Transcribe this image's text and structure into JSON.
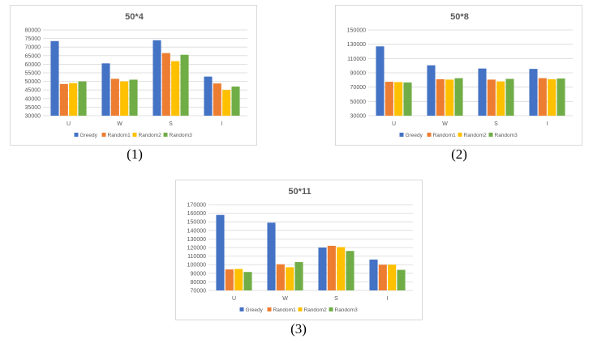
{
  "colors": {
    "Greedy": "#4472c4",
    "Random1": "#ed7d31",
    "Random2": "#ffc000",
    "Random3": "#70ad47",
    "grid": "#d9d9d9",
    "text": "#595959"
  },
  "captions": [
    "(1)",
    "(2)",
    "(3)"
  ],
  "chart_data": [
    {
      "type": "bar",
      "title": "50*4",
      "categories": [
        "U",
        "W",
        "S",
        "I"
      ],
      "series": [
        {
          "name": "Greedy",
          "values": [
            73500,
            60500,
            74000,
            52800
          ]
        },
        {
          "name": "Random1",
          "values": [
            48500,
            51500,
            66500,
            48800
          ]
        },
        {
          "name": "Random2",
          "values": [
            49000,
            50000,
            61800,
            45000
          ]
        },
        {
          "name": "Random3",
          "values": [
            50000,
            51000,
            65500,
            47000
          ]
        }
      ],
      "ylim": [
        30000,
        80000
      ],
      "yticks": [
        "80000",
        "75000",
        "70000",
        "65000",
        "60000",
        "55000",
        "50000",
        "45000",
        "40000",
        "35000",
        "30000"
      ],
      "grid": true,
      "legend": "bottom"
    },
    {
      "type": "bar",
      "title": "50*8",
      "categories": [
        "U",
        "W",
        "S",
        "I"
      ],
      "series": [
        {
          "name": "Greedy",
          "values": [
            127000,
            100500,
            96000,
            95500
          ]
        },
        {
          "name": "Random1",
          "values": [
            77500,
            81000,
            80500,
            82500
          ]
        },
        {
          "name": "Random2",
          "values": [
            77000,
            80500,
            78000,
            81000
          ]
        },
        {
          "name": "Random3",
          "values": [
            76500,
            82500,
            81500,
            82000
          ]
        }
      ],
      "ylim": [
        30000,
        150000
      ],
      "yticks": [
        "150000",
        "130000",
        "110000",
        "90000",
        "70000",
        "50000",
        "30000"
      ],
      "grid": true,
      "legend": "bottom"
    },
    {
      "type": "bar",
      "title": "50*11",
      "categories": [
        "U",
        "W",
        "S",
        "I"
      ],
      "series": [
        {
          "name": "Greedy",
          "values": [
            158000,
            149000,
            120000,
            106000
          ]
        },
        {
          "name": "Random1",
          "values": [
            94500,
            100500,
            122000,
            100000
          ]
        },
        {
          "name": "Random2",
          "values": [
            95000,
            97000,
            120500,
            100000
          ]
        },
        {
          "name": "Random3",
          "values": [
            91500,
            103000,
            116000,
            94000
          ]
        }
      ],
      "ylim": [
        70000,
        170000
      ],
      "yticks": [
        "170000",
        "160000",
        "150000",
        "140000",
        "130000",
        "120000",
        "110000",
        "100000",
        "90000",
        "80000",
        "70000"
      ],
      "grid": true,
      "legend": "bottom"
    }
  ]
}
